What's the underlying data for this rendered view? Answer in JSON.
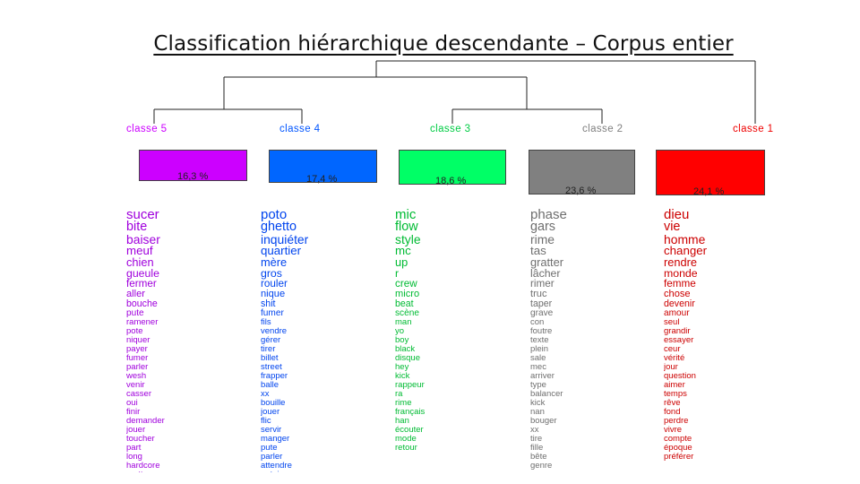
{
  "title": "Classification hiérarchique descendante – Corpus entier",
  "classes": [
    {
      "label": "classe  5",
      "percent": "16,3 %",
      "color": "#cc00ff",
      "box_color": "#cc00ff",
      "words": [
        "sucer",
        "bite",
        "baiser",
        "meuf",
        "chien",
        "gueule",
        "fermer",
        "aller",
        "bouche",
        "pute",
        "ramener",
        "pote",
        "niquer",
        "payer",
        "fumer",
        "parler",
        "wesh",
        "venir",
        "casser",
        "oui",
        "finir",
        "demander",
        "jouer",
        "toucher",
        "part",
        "long",
        "hardcore",
        "mettre"
      ]
    },
    {
      "label": "classe  4",
      "percent": "17,4 %",
      "color": "#0055ff",
      "box_color": "#0066ff",
      "words": [
        "poto",
        "ghetto",
        "inquiéter",
        "quartier",
        "mère",
        "gros",
        "rouler",
        "nique",
        "shit",
        "fumer",
        "fils",
        "vendre",
        "gérer",
        "tirer",
        "billet",
        "street",
        "frapper",
        "balle",
        "xx",
        "bouille",
        "jouer",
        "flic",
        "servir",
        "manger",
        "pute",
        "parler",
        "attendre",
        "putain"
      ]
    },
    {
      "label": "classe  3",
      "percent": "18,6 %",
      "color": "#00cc44",
      "box_color": "#00ff66",
      "words": [
        "mic",
        "flow",
        "style",
        "mc",
        "up",
        "r",
        "crew",
        "micro",
        "beat",
        "scène",
        "man",
        "yo",
        "boy",
        "black",
        "disque",
        "hey",
        "kick",
        "rappeur",
        "ra",
        "rime",
        "français",
        "han",
        "écouter",
        "mode",
        "retour"
      ]
    },
    {
      "label": "classe  2",
      "percent": "23,6 %",
      "color": "#808080",
      "box_color": "#808080",
      "words": [
        "phase",
        "gars",
        "rime",
        "tas",
        "gratter",
        "lâcher",
        "rimer",
        "truc",
        "taper",
        "grave",
        "con",
        "foutre",
        "texte",
        "plein",
        "sale",
        "mec",
        "arriver",
        "type",
        "balancer",
        "kick",
        "nan",
        "bouger",
        "xx",
        "tire",
        "fille",
        "bête",
        "genre"
      ]
    },
    {
      "label": "classe  1",
      "percent": "24,1 %",
      "color": "#ee0000",
      "box_color": "#ff0000",
      "words": [
        "dieu",
        "vie",
        "homme",
        "changer",
        "rendre",
        "monde",
        "femme",
        "chose",
        "devenir",
        "amour",
        "seul",
        "grandir",
        "essayer",
        "ceur",
        "vérité",
        "jour",
        "question",
        "aimer",
        "temps",
        "rêve",
        "fond",
        "perdre",
        "vivre",
        "compte",
        "époque",
        "préférer"
      ]
    }
  ]
}
